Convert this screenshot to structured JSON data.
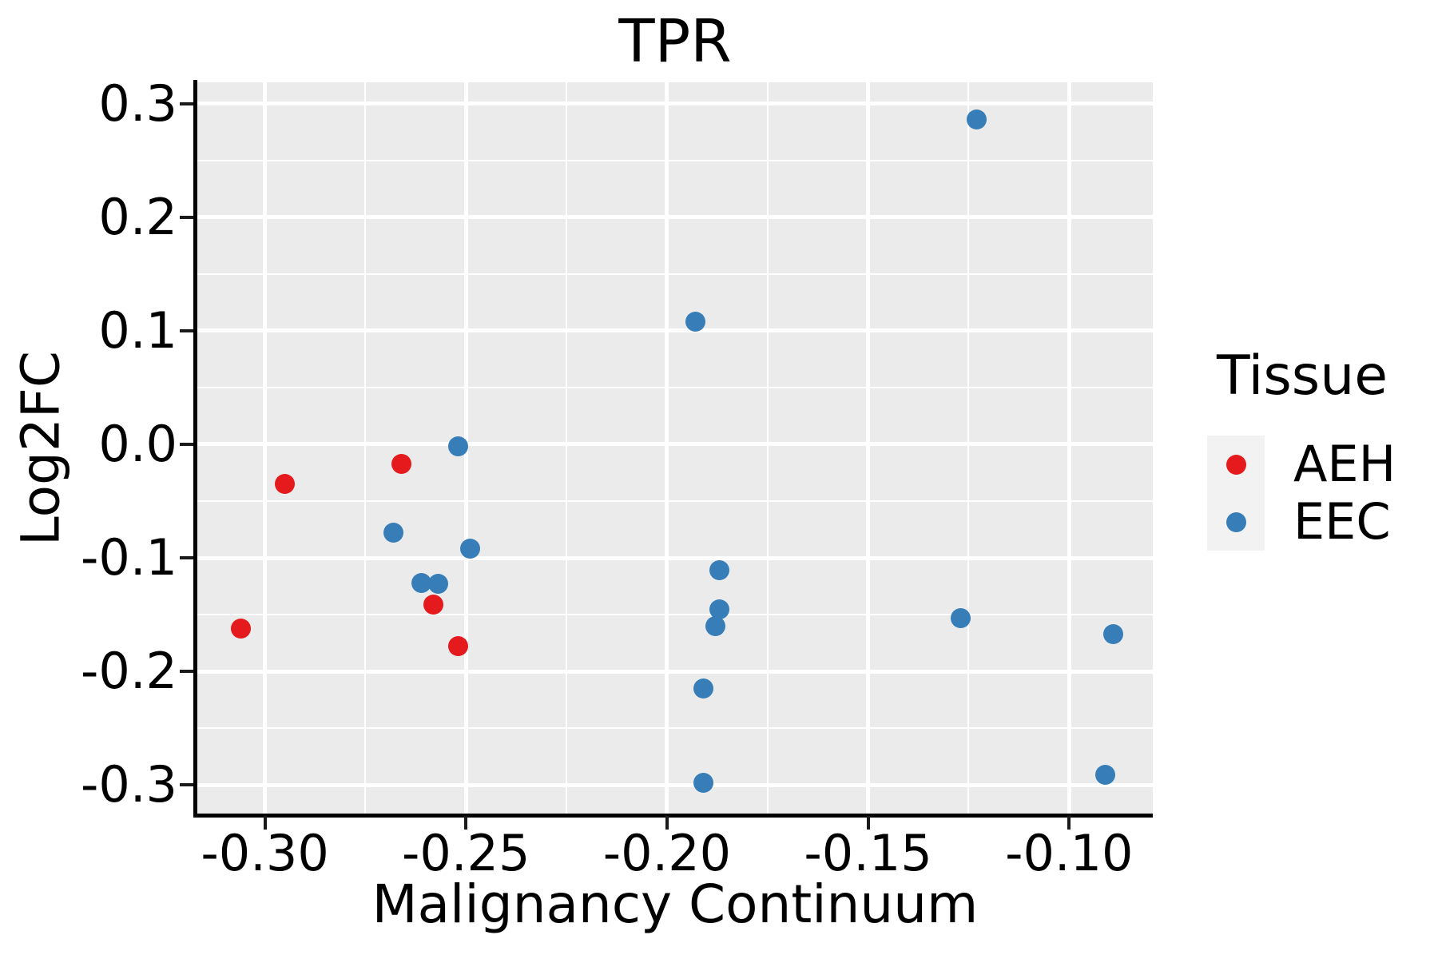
{
  "title": "TPR",
  "colors": {
    "background": "#FFFFFF",
    "panel_bg": "#EBEBEB",
    "grid": "#FFFFFF",
    "axis_line": "#000000",
    "tick": "#1a1a1a",
    "text": "#000000",
    "legend_key_bg": "#F2F2F2",
    "aeh_red": "#E41A1C",
    "eec_blue": "#377EB8"
  },
  "chart_data": {
    "type": "scatter",
    "title": "TPR",
    "xlabel": "Malignancy Continuum",
    "ylabel": "Log2FC",
    "legend_title": "Tissue",
    "legend_position": "right",
    "grid": {
      "major": true,
      "minor": true
    },
    "xlim": [
      -0.3168,
      -0.0792
    ],
    "ylim": [
      -0.3265,
      0.3187
    ],
    "x_ticks": {
      "values": [
        -0.3,
        -0.25,
        -0.2,
        -0.15,
        -0.1
      ],
      "labels": [
        "-0.30",
        "-0.25",
        "-0.20",
        "-0.15",
        "-0.10"
      ]
    },
    "y_ticks": {
      "values": [
        0.3,
        0.2,
        0.1,
        0.0,
        -0.1,
        -0.2,
        -0.3
      ],
      "labels": [
        "0.3",
        "0.2",
        "0.1",
        "0.0",
        "-0.1",
        "-0.2",
        "-0.3"
      ]
    },
    "series": [
      {
        "name": "AEH",
        "color": "#E41A1C",
        "points": [
          [
            -0.306,
            -0.162
          ],
          [
            -0.295,
            -0.035
          ],
          [
            -0.266,
            -0.017
          ],
          [
            -0.258,
            -0.141
          ],
          [
            -0.252,
            -0.178
          ]
        ]
      },
      {
        "name": "EEC",
        "color": "#377EB8",
        "points": [
          [
            -0.268,
            -0.078
          ],
          [
            -0.261,
            -0.122
          ],
          [
            -0.257,
            -0.123
          ],
          [
            -0.252,
            -0.002
          ],
          [
            -0.249,
            -0.092
          ],
          [
            -0.193,
            0.108
          ],
          [
            -0.191,
            -0.215
          ],
          [
            -0.191,
            -0.298
          ],
          [
            -0.188,
            -0.16
          ],
          [
            -0.187,
            -0.111
          ],
          [
            -0.187,
            -0.145
          ],
          [
            -0.127,
            -0.153
          ],
          [
            -0.123,
            0.286
          ],
          [
            -0.091,
            -0.291
          ],
          [
            -0.089,
            -0.167
          ]
        ]
      }
    ]
  }
}
